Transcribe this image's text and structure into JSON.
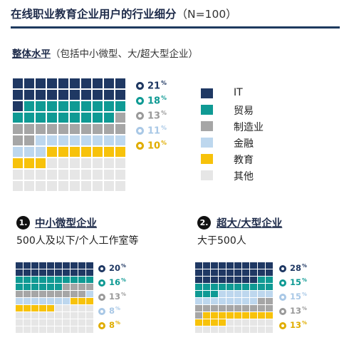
{
  "header": {
    "title": "在线职业教育企业用户的行业细分",
    "sample": "（N=100）"
  },
  "section_main": {
    "title_strong": "整体水平",
    "title_rest": "（包括中小微型、大/超大型企业）"
  },
  "legend": [
    {
      "label": "IT",
      "color": "#1f3863"
    },
    {
      "label": "贸易",
      "color": "#0f9a94"
    },
    {
      "label": "制造业",
      "color": "#a6a6a6"
    },
    {
      "label": "金融",
      "color": "#bdd7ee"
    },
    {
      "label": "教育",
      "color": "#f7c20a"
    },
    {
      "label": "其他",
      "color": "#e6e6e6"
    }
  ],
  "small_ent": {
    "badge": "1.",
    "title": "中小微型企业",
    "desc": "500人及以下/个人工作室等"
  },
  "large_ent": {
    "badge": "2.",
    "title": "超大/大型企业",
    "desc": "大于500人"
  },
  "chart_data": [
    {
      "type": "waffle",
      "title": "整体水平",
      "unit": "%",
      "series": [
        {
          "name": "IT",
          "value": 21,
          "label": "21%"
        },
        {
          "name": "贸易",
          "value": 18,
          "label": "18%"
        },
        {
          "name": "制造业",
          "value": 13,
          "label": "13%"
        },
        {
          "name": "金融",
          "value": 11,
          "label": "11%"
        },
        {
          "name": "教育",
          "value": 10,
          "label": "10%"
        },
        {
          "name": "其他",
          "value": 27
        }
      ]
    },
    {
      "type": "waffle",
      "title": "中小微型企业",
      "unit": "%",
      "series": [
        {
          "name": "IT",
          "value": 20,
          "label": "20%"
        },
        {
          "name": "贸易",
          "value": 16,
          "label": "16%"
        },
        {
          "name": "制造业",
          "value": 13,
          "label": "13%"
        },
        {
          "name": "金融",
          "value": 8,
          "label": "8%"
        },
        {
          "name": "教育",
          "value": 8,
          "label": "8%"
        },
        {
          "name": "其他",
          "value": 35
        }
      ]
    },
    {
      "type": "waffle",
      "title": "超大/大型企业",
      "unit": "%",
      "series": [
        {
          "name": "IT",
          "value": 28,
          "label": "28%"
        },
        {
          "name": "贸易",
          "value": 15,
          "label": "15%"
        },
        {
          "name": "金融",
          "value": 15,
          "label": "15%"
        },
        {
          "name": "制造业",
          "value": 13,
          "label": "13%"
        },
        {
          "name": "教育",
          "value": 13,
          "label": "13%"
        },
        {
          "name": "其他",
          "value": 16
        }
      ]
    }
  ]
}
